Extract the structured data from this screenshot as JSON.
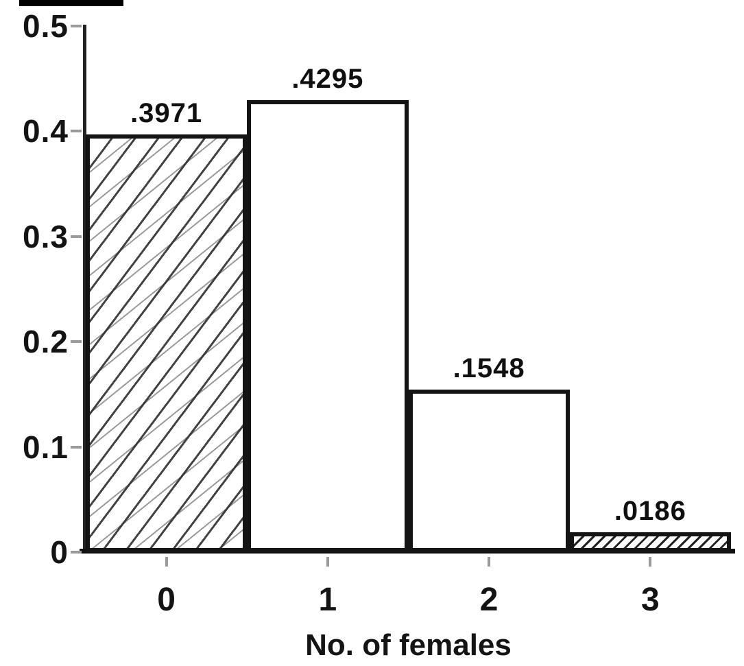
{
  "figure": {
    "background": "#ffffff",
    "ink_color": "#141414",
    "tick_color": "#9a9a9a"
  },
  "chart_data": {
    "type": "bar",
    "title": "",
    "xlabel": "No. of females",
    "ylabel": "",
    "categories": [
      "0",
      "1",
      "2",
      "3"
    ],
    "values": [
      0.3971,
      0.4295,
      0.1548,
      0.0186
    ],
    "bar_labels": [
      ".3971",
      ".4295",
      ".1548",
      ".0186"
    ],
    "ylim": [
      0,
      0.5
    ],
    "yticks": [
      {
        "label": "0.5",
        "value": 0.5
      },
      {
        "label": "0.4",
        "value": 0.4
      },
      {
        "label": "0.3",
        "value": 0.3
      },
      {
        "label": "0.2",
        "value": 0.2
      },
      {
        "label": "0.1",
        "value": 0.1
      },
      {
        "label": "0",
        "value": 0
      }
    ],
    "grid": false,
    "legend": "none",
    "bar_style": {
      "fill": "#ffffff",
      "border": "#141414",
      "hatched": [
        0,
        3
      ],
      "hatch_pattern": "diagonal-forward-slash"
    }
  }
}
